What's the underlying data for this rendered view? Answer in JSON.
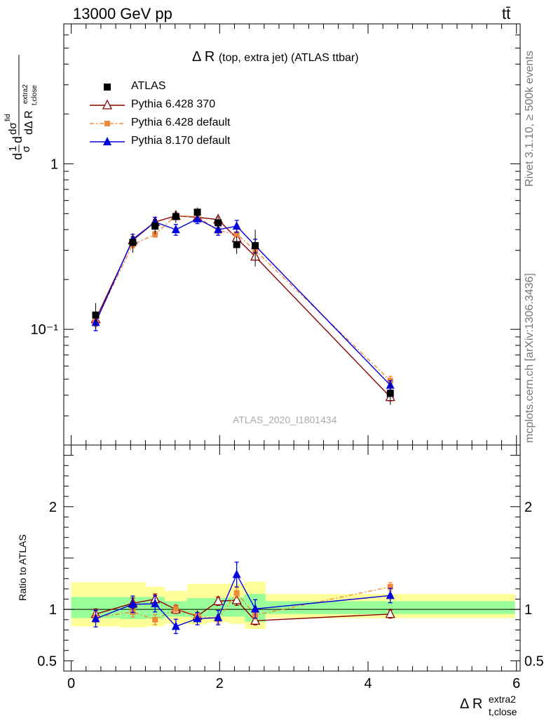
{
  "header": {
    "energy_label": "13000 GeV pp",
    "process_label": "tt̄"
  },
  "side": {
    "rivet_label": "Rivet 3.1.10, ≥ 500k events",
    "mcplots_label": "mcplots.cern.ch [arXiv:1306.3436]"
  },
  "chart_data": [
    {
      "type": "line",
      "title_main": "Δ R",
      "title_sub": "(top, extra jet) (ATLAS ttbar)",
      "watermark": "ATLAS_2020_I1801434",
      "ylabel": "1/σ dσ^{fid} / dΔ R_{t,close}^{extra2}",
      "yscale": "log",
      "ylim": [
        0.02,
        7
      ],
      "xlim": [
        -0.1,
        6.05
      ],
      "yticks": [
        {
          "value": 0.1,
          "label": "10⁻¹"
        },
        {
          "value": 1,
          "label": "1"
        }
      ],
      "legend_position": "top-left",
      "series": [
        {
          "name": "ATLAS",
          "color": "#000000",
          "marker": "square",
          "x": [
            0.33,
            0.83,
            1.13,
            1.41,
            1.7,
            1.98,
            2.23,
            2.48,
            4.3
          ],
          "y": [
            0.122,
            0.335,
            0.42,
            0.48,
            0.51,
            0.44,
            0.325,
            0.32,
            0.041
          ],
          "xerr": [
            0.33,
            0.17,
            0.13,
            0.15,
            0.14,
            0.14,
            0.11,
            0.14,
            1.68
          ],
          "err_stat": [
            0.006,
            0.015,
            0.015,
            0.015,
            0.015,
            0.015,
            0.012,
            0.012,
            0.002
          ],
          "err_total": [
            0.022,
            0.045,
            0.045,
            0.04,
            0.035,
            0.04,
            0.04,
            0.08,
            0.006
          ]
        },
        {
          "name": "Pythia 6.428 370",
          "color": "#8b0000",
          "marker": "triangle-open",
          "dash": "solid",
          "x": [
            0.33,
            0.83,
            1.13,
            1.41,
            1.7,
            1.98,
            2.23,
            2.48,
            4.3
          ],
          "y": [
            0.115,
            0.345,
            0.445,
            0.485,
            0.475,
            0.46,
            0.355,
            0.275,
            0.039
          ],
          "err": [
            0.008,
            0.018,
            0.015,
            0.012,
            0.012,
            0.015,
            0.015,
            0.012,
            0.002
          ]
        },
        {
          "name": "Pythia 6.428 default",
          "color": "#f0883b",
          "marker": "square-small",
          "dash": "dashdot",
          "x": [
            0.33,
            0.83,
            1.13,
            1.41,
            1.7,
            1.98,
            2.23,
            2.48,
            4.3
          ],
          "y": [
            0.112,
            0.325,
            0.375,
            0.485,
            0.48,
            0.395,
            0.375,
            0.3,
            0.049
          ],
          "err": [
            0.008,
            0.015,
            0.015,
            0.015,
            0.015,
            0.015,
            0.015,
            0.015,
            0.003
          ]
        },
        {
          "name": "Pythia 8.170 default",
          "color": "#0000e0",
          "marker": "triangle",
          "dash": "solid",
          "x": [
            0.33,
            0.83,
            1.13,
            1.41,
            1.7,
            1.98,
            2.23,
            2.48,
            4.3
          ],
          "y": [
            0.11,
            0.35,
            0.445,
            0.4,
            0.465,
            0.4,
            0.42,
            0.32,
            0.046
          ],
          "err": [
            0.012,
            0.025,
            0.03,
            0.03,
            0.03,
            0.03,
            0.035,
            0.03,
            0.003
          ]
        }
      ]
    },
    {
      "type": "line",
      "ylabel": "Ratio to ATLAS",
      "xlabel": "Δ R_{t,close}^{extra2}",
      "ylim": [
        0.4,
        2.6
      ],
      "xlim": [
        -0.1,
        6.05
      ],
      "xticks": [
        0,
        2,
        4,
        6
      ],
      "yticks": [
        0.5,
        1,
        2
      ],
      "bands": {
        "edges": [
          0.0,
          0.66,
          1.0,
          1.26,
          1.56,
          1.84,
          2.12,
          2.34,
          2.62,
          5.98
        ],
        "inner": [
          [
            0.915,
            1.12
          ],
          [
            0.905,
            1.12
          ],
          [
            0.91,
            1.12
          ],
          [
            0.93,
            1.08
          ],
          [
            0.93,
            1.11
          ],
          [
            0.93,
            1.11
          ],
          [
            0.93,
            1.12
          ],
          [
            0.88,
            1.15
          ],
          [
            0.955,
            1.08
          ]
        ],
        "outer": [
          [
            0.835,
            1.265
          ],
          [
            0.825,
            1.265
          ],
          [
            0.835,
            1.22
          ],
          [
            0.86,
            1.18
          ],
          [
            0.855,
            1.25
          ],
          [
            0.875,
            1.25
          ],
          [
            0.86,
            1.25
          ],
          [
            0.81,
            1.27
          ],
          [
            0.915,
            1.15
          ]
        ]
      },
      "series": [
        {
          "name": "Pythia 6.428 370",
          "x": [
            0.33,
            0.83,
            1.13,
            1.41,
            1.7,
            1.98,
            2.23,
            2.48,
            4.3
          ],
          "y": [
            0.955,
            1.06,
            1.1,
            1.0,
            0.935,
            1.08,
            1.09,
            0.89,
            0.955
          ],
          "err": [
            0.05,
            0.05,
            0.05,
            0.04,
            0.03,
            0.04,
            0.05,
            0.04,
            0.04
          ]
        },
        {
          "name": "Pythia 6.428 default",
          "x": [
            0.33,
            0.83,
            1.13,
            1.41,
            1.7,
            1.98,
            2.23,
            2.48,
            4.3
          ],
          "y": [
            0.925,
            0.975,
            0.9,
            1.005,
            0.94,
            0.905,
            1.16,
            0.945,
            1.22
          ],
          "err": [
            0.05,
            0.05,
            0.05,
            0.04,
            0.03,
            0.04,
            0.05,
            0.04,
            0.04
          ]
        },
        {
          "name": "Pythia 8.170 default",
          "x": [
            0.33,
            0.83,
            1.13,
            1.41,
            1.7,
            1.98,
            2.23,
            2.48,
            4.3
          ],
          "y": [
            0.91,
            1.05,
            1.055,
            0.835,
            0.91,
            0.92,
            1.34,
            1.005,
            1.135
          ],
          "err": [
            0.08,
            0.08,
            0.08,
            0.07,
            0.06,
            0.07,
            0.12,
            0.09,
            0.07
          ]
        }
      ]
    }
  ]
}
